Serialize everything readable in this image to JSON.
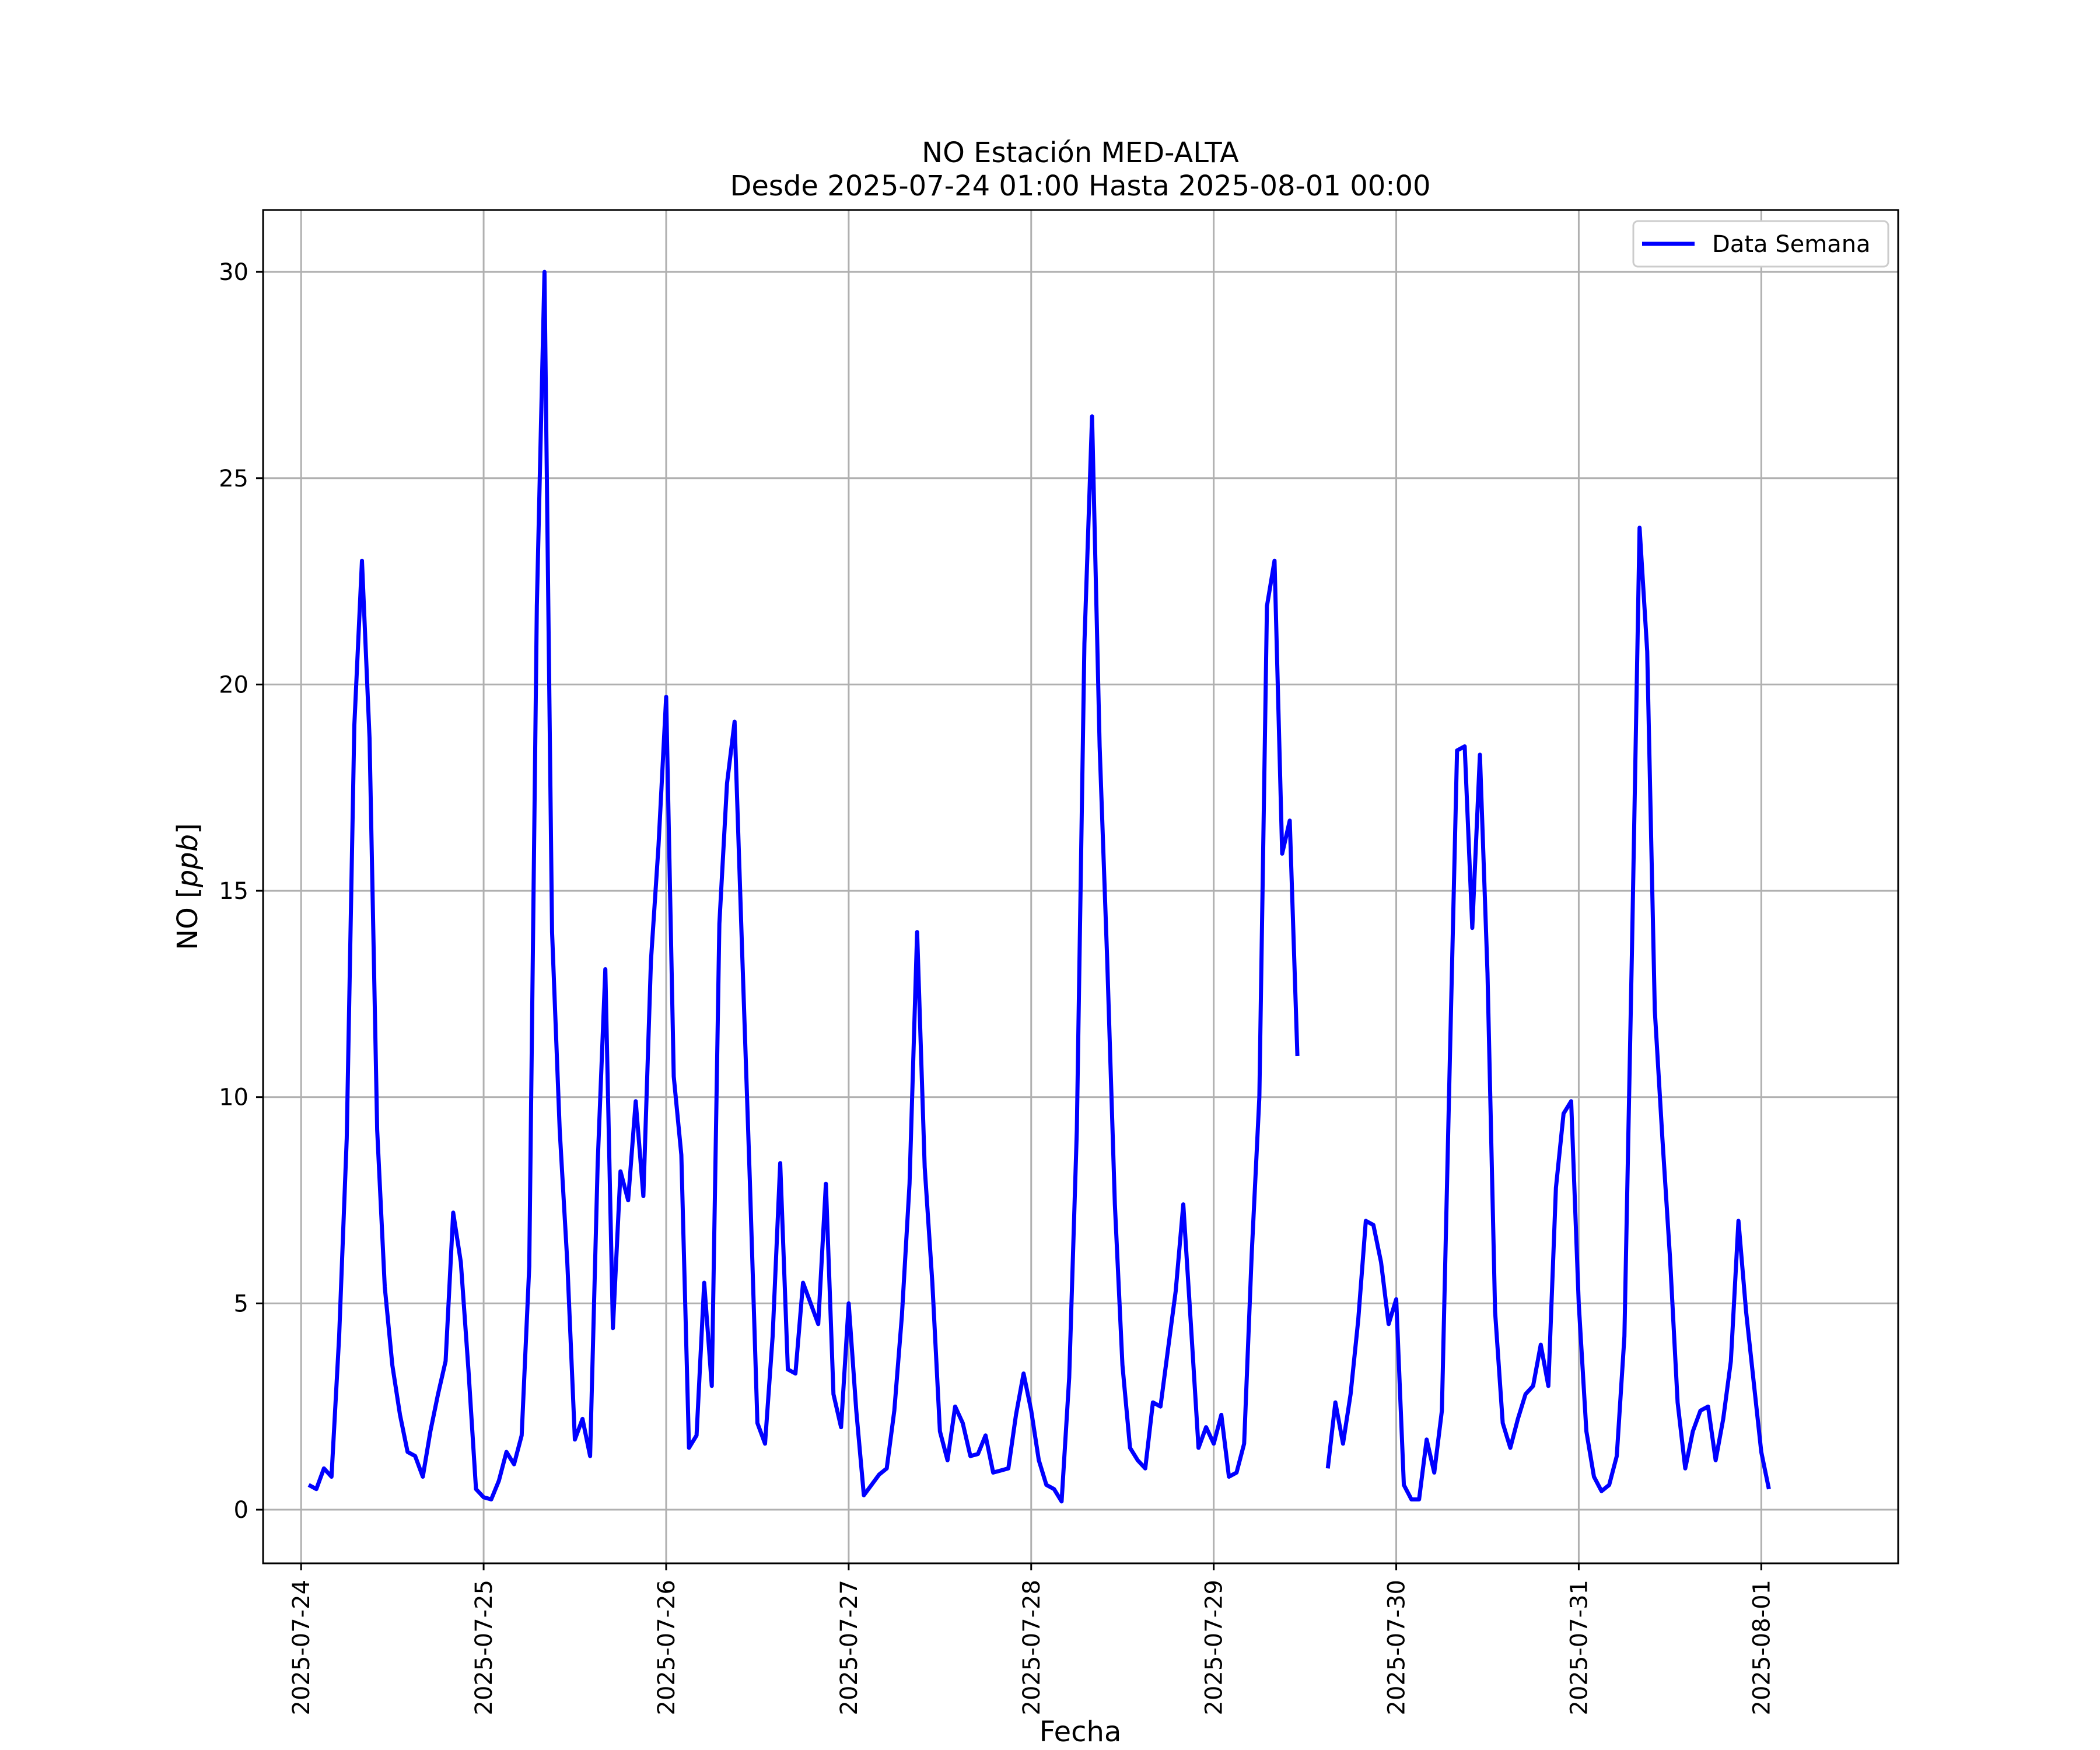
{
  "chart_data": {
    "type": "line",
    "title": "NO Estación MED-ALTA",
    "subtitle": "Desde 2025-07-24 01:00 Hasta 2025-08-01 00:00",
    "xlabel": "Fecha",
    "ylabel": "NO [ppb]",
    "ylabel_plain": "NO [",
    "ylabel_unit": "ppb",
    "ylabel_close": "]",
    "x_start": "2025-07-24 01:00",
    "x_end": "2025-08-01 00:00",
    "xlim": [
      "2025-07-23 19:00",
      "2025-08-01 18:00"
    ],
    "ylim": [
      -1.3,
      31.5
    ],
    "x_ticks": [
      "2025-07-24",
      "2025-07-25",
      "2025-07-26",
      "2025-07-27",
      "2025-07-28",
      "2025-07-29",
      "2025-07-30",
      "2025-07-31",
      "2025-08-01"
    ],
    "y_ticks": [
      0,
      5,
      10,
      15,
      20,
      25,
      30
    ],
    "y_tick_labels": [
      "0",
      "5",
      "10",
      "15",
      "20",
      "25",
      "30"
    ],
    "grid": true,
    "legend_position": "top-right",
    "series": [
      {
        "name": "Data Semana",
        "color": "#0000ff",
        "sampling": "hourly",
        "values": [
          0.6,
          0.5,
          1.0,
          0.8,
          4.2,
          9.0,
          19.0,
          23.0,
          18.7,
          9.2,
          5.4,
          3.5,
          2.3,
          1.4,
          1.3,
          0.8,
          1.9,
          2.8,
          3.6,
          7.2,
          6.0,
          3.4,
          0.5,
          0.3,
          0.25,
          0.7,
          1.4,
          1.1,
          1.8,
          5.9,
          21.9,
          30.0,
          14.0,
          9.2,
          6.0,
          1.7,
          2.2,
          1.3,
          8.4,
          13.1,
          4.4,
          8.2,
          7.5,
          9.9,
          7.6,
          13.3,
          16.1,
          19.7,
          10.5,
          8.6,
          1.5,
          1.8,
          5.5,
          3.0,
          14.2,
          17.6,
          19.1,
          13.5,
          8.0,
          2.1,
          1.6,
          4.2,
          8.4,
          3.4,
          3.3,
          5.5,
          5.0,
          4.5,
          7.9,
          2.8,
          2.0,
          5.0,
          2.4,
          0.35,
          0.6,
          0.85,
          1.0,
          2.4,
          4.7,
          7.9,
          14.0,
          8.3,
          5.5,
          1.9,
          1.2,
          2.5,
          2.1,
          1.3,
          1.35,
          1.8,
          0.9,
          0.95,
          1.0,
          2.3,
          3.3,
          2.4,
          1.2,
          0.6,
          0.5,
          0.2,
          3.2,
          9.2,
          21.0,
          26.5,
          18.5,
          13.3,
          7.4,
          3.5,
          1.5,
          1.2,
          1.0,
          2.6,
          2.5,
          3.9,
          5.3,
          7.4,
          4.5,
          1.5,
          2.0,
          1.6,
          2.3,
          0.8,
          0.9,
          1.6,
          6.2,
          10.0,
          21.9,
          23.0,
          15.9,
          16.7,
          11.0,
          null,
          null,
          null,
          1.0,
          2.6,
          1.6,
          2.8,
          4.6,
          7.0,
          6.9,
          6.0,
          4.5,
          5.1,
          0.6,
          0.25,
          0.25,
          1.7,
          0.9,
          2.4,
          10.5,
          18.4,
          18.5,
          14.1,
          18.3,
          13.0,
          4.8,
          2.1,
          1.5,
          2.2,
          2.8,
          3.0,
          4.0,
          3.0,
          7.8,
          9.6,
          9.9,
          5.0,
          1.9,
          0.8,
          0.45,
          0.6,
          1.3,
          4.2,
          13.6,
          23.8,
          20.8,
          12.1,
          9.0,
          6.1,
          2.6,
          1.0,
          1.9,
          2.4,
          2.5,
          1.2,
          2.2,
          3.6,
          7.0,
          4.8,
          3.1,
          1.4,
          0.5
        ]
      }
    ]
  }
}
